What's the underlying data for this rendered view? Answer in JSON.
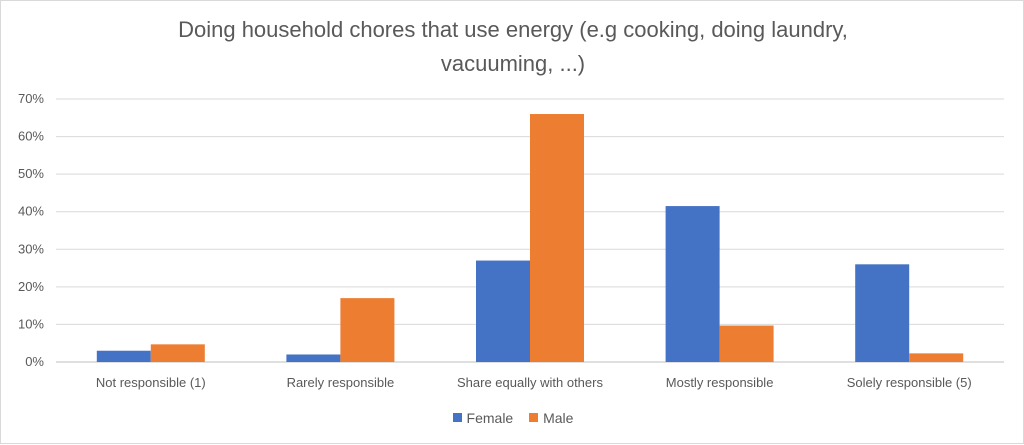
{
  "chart_data": {
    "type": "bar",
    "title": "Doing household chores that use energy (e.g cooking, doing laundry, vacuuming, ...)",
    "categories": [
      "Not responsible (1)",
      "Rarely responsible",
      "Share equally with others",
      "Mostly responsible",
      "Solely responsible (5)"
    ],
    "series": [
      {
        "name": "Female",
        "color": "#4472c4",
        "values": [
          3,
          2,
          27,
          41.5,
          26
        ]
      },
      {
        "name": "Male",
        "color": "#ed7d31",
        "values": [
          4.7,
          17,
          66,
          9.7,
          2.3
        ]
      }
    ],
    "ylim": [
      0,
      70
    ],
    "yticks": [
      "0%",
      "10%",
      "20%",
      "30%",
      "40%",
      "50%",
      "60%",
      "70%"
    ],
    "grid": true,
    "legend_position": "bottom"
  }
}
